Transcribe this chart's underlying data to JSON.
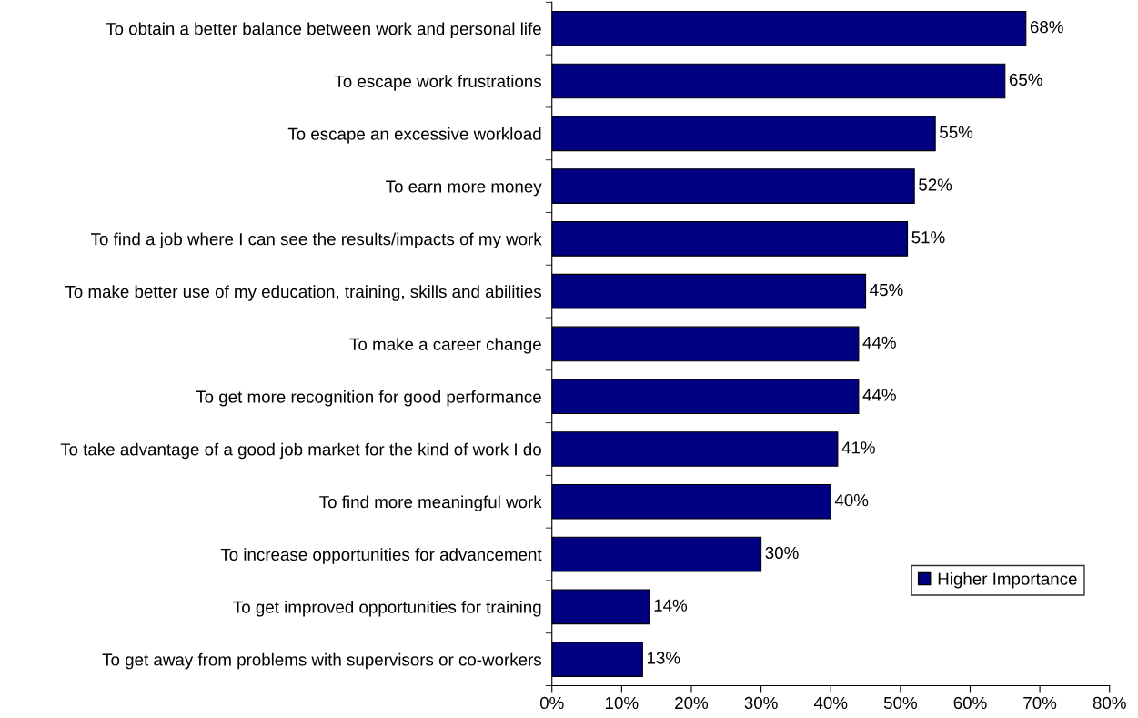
{
  "chart_data": {
    "type": "bar",
    "orientation": "horizontal",
    "categories": [
      "To obtain a better balance between work and personal life",
      "To escape work frustrations",
      "To escape an excessive workload",
      "To earn more money",
      "To find a job where I can see the results/impacts of my work",
      "To make better use of my education, training, skills and abilities",
      "To make a career change",
      "To get more recognition for good performance",
      "To take advantage of a good job market for the kind of work I do",
      "To find more meaningful work",
      "To increase opportunities for advancement",
      "To get improved opportunities for training",
      "To get away from problems with supervisors or co-workers"
    ],
    "series": [
      {
        "name": "Higher Importance",
        "color": "#000080",
        "values": [
          68,
          65,
          55,
          52,
          51,
          45,
          44,
          44,
          41,
          40,
          30,
          14,
          13
        ],
        "value_labels": [
          "68%",
          "65%",
          "55%",
          "52%",
          "51%",
          "45%",
          "44%",
          "44%",
          "41%",
          "40%",
          "30%",
          "14%",
          "13%"
        ]
      }
    ],
    "xlim": [
      0,
      80
    ],
    "xticks": [
      {
        "value": 0,
        "label": "0%"
      },
      {
        "value": 10,
        "label": "10%"
      },
      {
        "value": 20,
        "label": "20%"
      },
      {
        "value": 30,
        "label": "30%"
      },
      {
        "value": 40,
        "label": "40%"
      },
      {
        "value": 50,
        "label": "50%"
      },
      {
        "value": 60,
        "label": "60%"
      },
      {
        "value": 70,
        "label": "70%"
      },
      {
        "value": 80,
        "label": "80%"
      }
    ],
    "grid": false,
    "legend": "bottom right"
  }
}
